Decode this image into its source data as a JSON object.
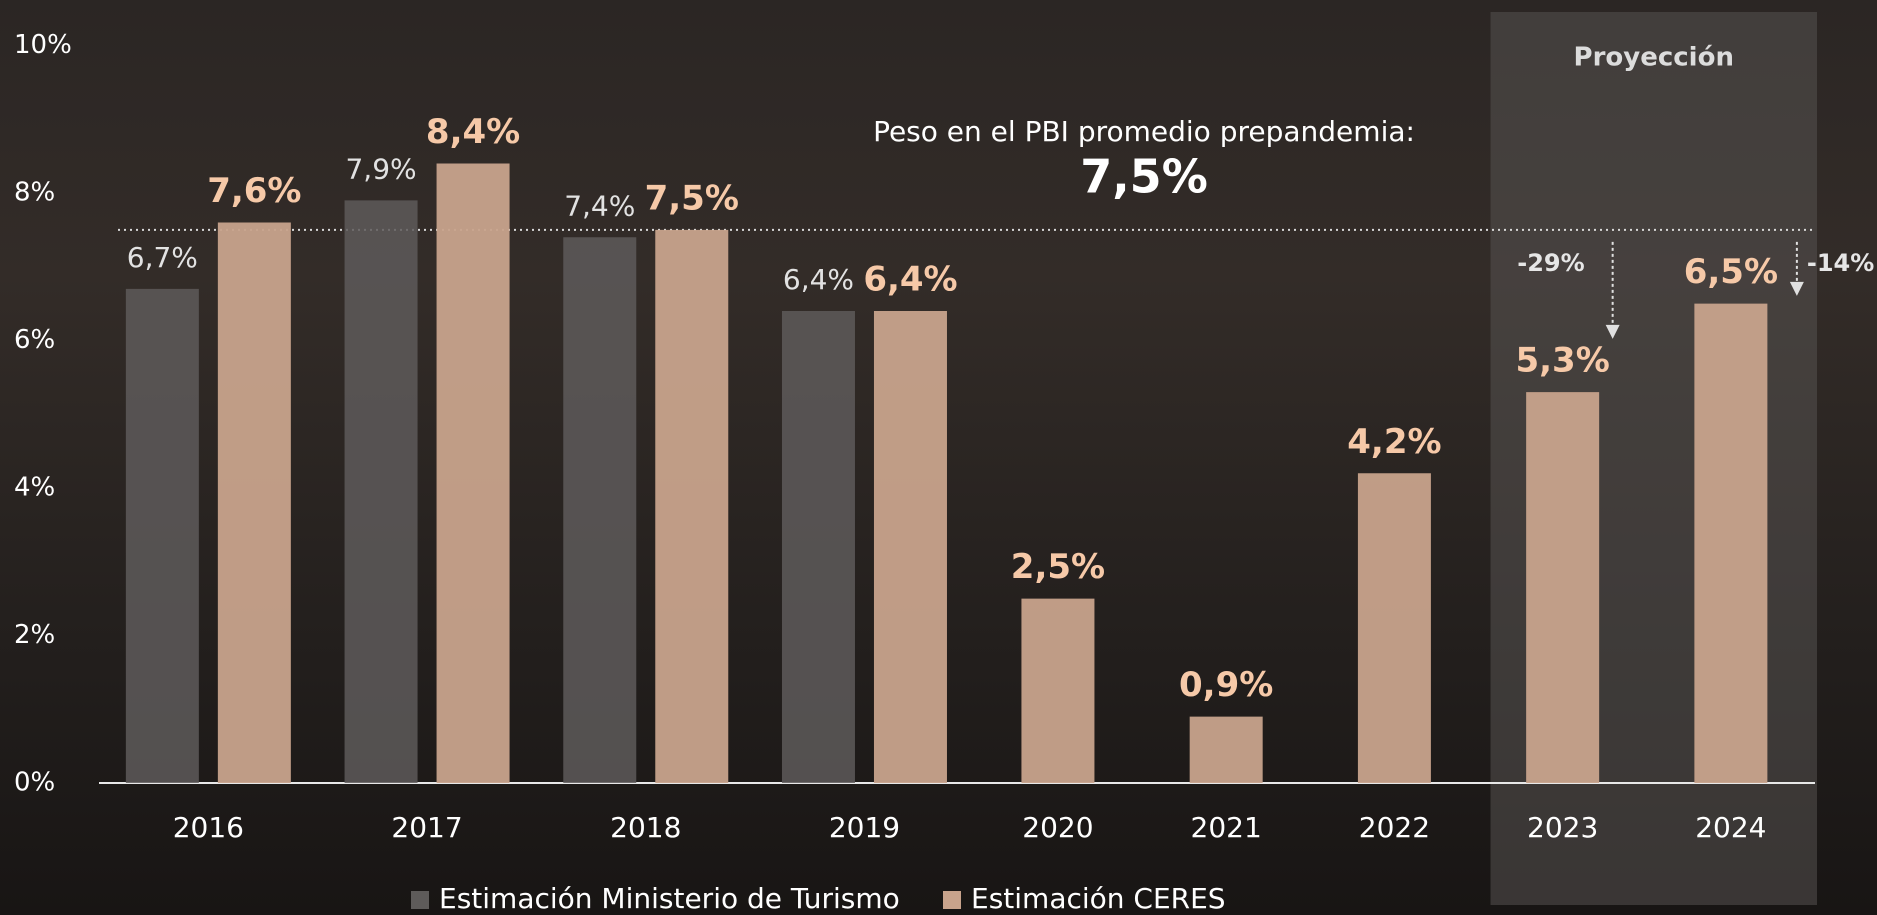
{
  "chart_data": {
    "type": "bar",
    "categories": [
      "2016",
      "2017",
      "2018",
      "2019",
      "2020",
      "2021",
      "2022",
      "2023",
      "2024"
    ],
    "series": [
      {
        "name": "Estimación Ministerio de Turismo",
        "color": "#5e5b5a",
        "values": [
          6.7,
          7.9,
          7.4,
          6.4,
          null,
          null,
          null,
          null,
          null
        ],
        "value_labels": [
          "6,7%",
          "7,9%",
          "7,4%",
          "6,4%",
          null,
          null,
          null,
          null,
          null
        ]
      },
      {
        "name": "Estimación CERES",
        "color": "#c8a38c",
        "values": [
          7.6,
          8.4,
          7.5,
          6.4,
          2.5,
          0.9,
          4.2,
          5.3,
          6.5
        ],
        "value_labels": [
          "7,6%",
          "8,4%",
          "7,5%",
          "6,4%",
          "2,5%",
          "0,9%",
          "4,2%",
          "5,3%",
          "6,5%"
        ]
      }
    ],
    "ylim": [
      0,
      10
    ],
    "yticks": [
      {
        "value": 0,
        "label": "0%"
      },
      {
        "value": 2,
        "label": "2%"
      },
      {
        "value": 4,
        "label": "4%"
      },
      {
        "value": 6,
        "label": "6%"
      },
      {
        "value": 8,
        "label": "8%"
      },
      {
        "value": 10,
        "label": "10%"
      }
    ],
    "reference_line": {
      "value": 7.5,
      "label": "7,5%",
      "text": "Peso en el PBI promedio prepandemia:"
    },
    "projection": {
      "label": "Proyección",
      "categories": [
        "2023",
        "2024"
      ]
    },
    "annotations": [
      {
        "text": "-29%",
        "category": "2023"
      },
      {
        "text": "-14%",
        "category": "2024"
      }
    ],
    "legend": "bottom"
  }
}
